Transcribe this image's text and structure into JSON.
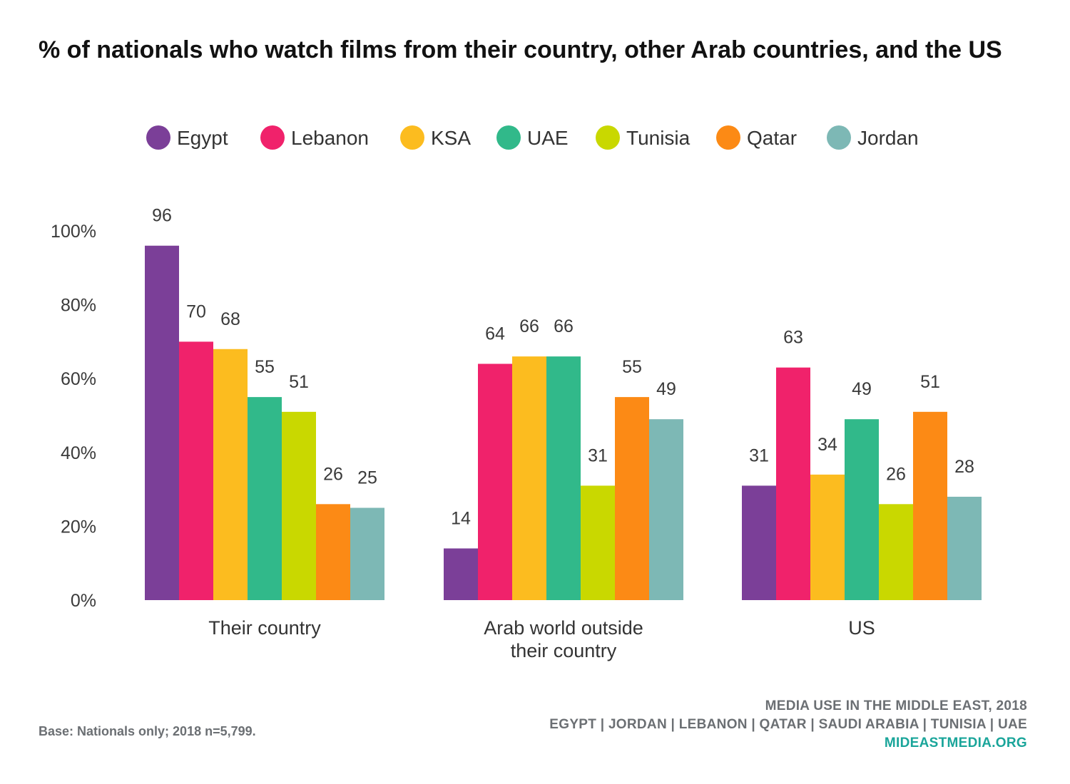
{
  "chart_data": {
    "type": "bar",
    "title": " % of nationals who watch films from their country, other Arab countries, and the US",
    "categories": [
      [
        "Their country"
      ],
      [
        "Arab world outside",
        "their country"
      ],
      [
        "US"
      ]
    ],
    "series": [
      {
        "name": "Egypt",
        "color": "#7b3f98",
        "values": [
          96,
          14,
          31
        ]
      },
      {
        "name": "Lebanon",
        "color": "#f0226b",
        "values": [
          70,
          64,
          63
        ]
      },
      {
        "name": "KSA",
        "color": "#fcbc1f",
        "values": [
          68,
          66,
          34
        ]
      },
      {
        "name": "UAE",
        "color": "#31b98a",
        "values": [
          55,
          66,
          49
        ]
      },
      {
        "name": "Tunisia",
        "color": "#c9d800",
        "values": [
          51,
          31,
          26
        ]
      },
      {
        "name": "Qatar",
        "color": "#fc8a15",
        "values": [
          26,
          55,
          51
        ]
      },
      {
        "name": "Jordan",
        "color": "#7db8b5",
        "values": [
          25,
          49,
          28
        ]
      }
    ],
    "y_ticks": [
      "0%",
      "20%",
      "40%",
      "60%",
      "80%",
      "100%"
    ],
    "ylim": [
      0,
      100
    ],
    "grid": false,
    "legend": "top",
    "xlabel": "",
    "ylabel": ""
  },
  "footer": {
    "source_line1": "MEDIA USE IN THE MIDDLE EAST, 2018",
    "source_line2": "EGYPT | JORDAN | LEBANON | QATAR | SAUDI ARABIA | TUNISIA | UAE",
    "website": "MIDEASTMEDIA.ORG",
    "base_note": "Base: Nationals only; 2018 n=5,799."
  },
  "colors": {
    "footer_text": "#6b6f73",
    "website_text": "#1aa59a",
    "axis_text": "#3a3a3a"
  }
}
